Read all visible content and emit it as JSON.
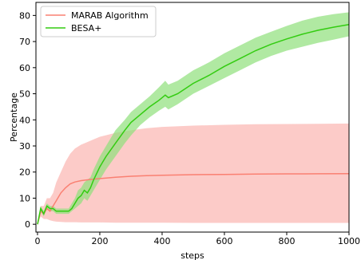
{
  "chart_data": {
    "type": "line",
    "title": "",
    "xlabel": "steps",
    "ylabel": "Percentage",
    "xlim": [
      -5,
      1000
    ],
    "ylim": [
      -3,
      85
    ],
    "xticks": [
      0,
      200,
      400,
      600,
      800,
      1000
    ],
    "yticks": [
      0,
      10,
      20,
      30,
      40,
      50,
      60,
      70,
      80
    ],
    "grid": false,
    "legend_position": "top-left",
    "series": [
      {
        "name": "MARAB Algorithm",
        "color": "#fa8072",
        "band_color": "#f9a09a",
        "x": [
          0,
          10,
          20,
          30,
          40,
          50,
          60,
          75,
          90,
          105,
          120,
          140,
          160,
          180,
          200,
          250,
          300,
          350,
          400,
          500,
          600,
          700,
          800,
          900,
          1000
        ],
        "y": [
          0,
          5,
          4,
          6,
          5,
          7,
          9,
          12,
          14,
          15.5,
          16.2,
          16.7,
          17.0,
          17.3,
          17.5,
          18.0,
          18.4,
          18.6,
          18.8,
          19.0,
          19.1,
          19.2,
          19.3,
          19.35,
          19.4
        ],
        "upper": [
          0,
          7,
          7,
          10,
          10,
          12,
          16,
          20,
          24,
          27,
          29,
          30.5,
          31.5,
          32.5,
          33.5,
          35,
          36,
          36.8,
          37.3,
          37.8,
          38.1,
          38.3,
          38.4,
          38.5,
          38.6
        ],
        "lower": [
          0,
          3,
          2,
          2,
          1.5,
          1.2,
          1.0,
          0.9,
          0.8,
          0.8,
          0.8,
          0.7,
          0.7,
          0.7,
          0.7,
          0.6,
          0.6,
          0.6,
          0.6,
          0.5,
          0.5,
          0.5,
          0.5,
          0.5,
          0.5
        ]
      },
      {
        "name": "BESA+",
        "color": "#33cc11",
        "band_color": "#8fe07a",
        "x": [
          0,
          10,
          20,
          30,
          40,
          50,
          60,
          80,
          100,
          110,
          120,
          130,
          140,
          150,
          160,
          170,
          180,
          200,
          220,
          250,
          280,
          300,
          330,
          360,
          390,
          410,
          420,
          450,
          500,
          550,
          600,
          650,
          700,
          750,
          800,
          850,
          900,
          950,
          1000
        ],
        "y": [
          0,
          6,
          4,
          7,
          6,
          6,
          5,
          5,
          5,
          6,
          8,
          10,
          11,
          13,
          12,
          14,
          17,
          22,
          26,
          31,
          36,
          39,
          42,
          45,
          47.5,
          49.5,
          48.5,
          50,
          54,
          57,
          60.5,
          63.5,
          66.5,
          69,
          71,
          72.8,
          74.3,
          75.5,
          76.5
        ],
        "upper": [
          0,
          7,
          5,
          8,
          7,
          7,
          6,
          6,
          6,
          8,
          10,
          13,
          14,
          16,
          17,
          18,
          21,
          26,
          30,
          36,
          40,
          43,
          46,
          49,
          52.5,
          55,
          53.5,
          55,
          59,
          62,
          65.5,
          68.5,
          71.5,
          73.8,
          76,
          78,
          79.5,
          80.5,
          81.2
        ],
        "lower": [
          0,
          5,
          3,
          6,
          5,
          5,
          4,
          4,
          4,
          5,
          6,
          7,
          8,
          10,
          9,
          11,
          13,
          17,
          21,
          26,
          31,
          34,
          38,
          41,
          43.5,
          45,
          44,
          46,
          50,
          53,
          56,
          59,
          62,
          64.5,
          66.5,
          68,
          69.5,
          70.7,
          72
        ]
      }
    ]
  }
}
